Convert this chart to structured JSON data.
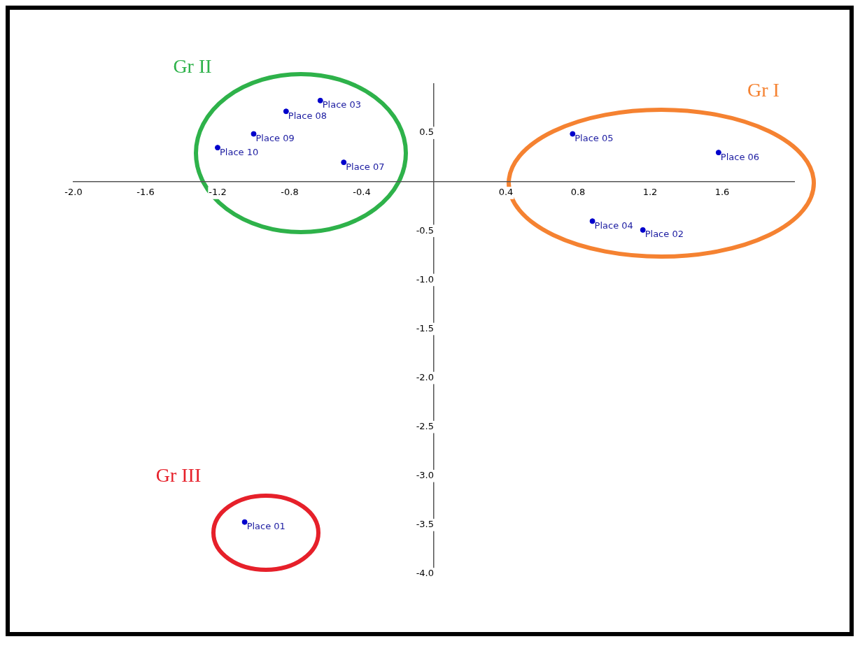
{
  "chart_data": {
    "type": "scatter",
    "series": [
      {
        "color": "#0000cc",
        "x": [
          -1.05,
          1.16,
          -0.63,
          0.88,
          0.77,
          1.58,
          -0.5,
          -0.82,
          -1.0,
          -1.2
        ],
        "values": [
          -3.47,
          -0.49,
          0.83,
          -0.4,
          0.49,
          0.3,
          0.2,
          0.72,
          0.49,
          0.35
        ]
      }
    ],
    "marker": "circle",
    "grid": false,
    "legend": false,
    "xlim": [
      -2.0,
      2.0
    ],
    "xticks": [
      {
        "value": -2,
        "label": "-2.0"
      },
      -1.6,
      -1.2,
      -0.8,
      -0.4,
      0.4,
      0.8,
      1.2,
      1.6
    ],
    "ylim": [
      -4.0,
      1.0
    ],
    "yticks": [
      0.5,
      -0.5,
      {
        "value": -1,
        "label": "-1.0"
      },
      -1.5,
      {
        "value": -2,
        "label": "-2.0"
      },
      -2.5,
      {
        "value": -3,
        "label": "-3.0"
      },
      -3.5,
      {
        "value": -4,
        "label": "-4.0"
      }
    ],
    "annotations": [
      {
        "text": "Place 01",
        "x": -1.05,
        "y": -3.47
      },
      {
        "text": "Place 02",
        "x": 1.16,
        "y": -0.49
      },
      {
        "text": "Place 03",
        "x": -0.63,
        "y": 0.83
      },
      {
        "text": "Place 04",
        "x": 0.88,
        "y": -0.4
      },
      {
        "text": "Place 05",
        "x": 0.77,
        "y": 0.49
      },
      {
        "text": "Place 06",
        "x": 1.58,
        "y": 0.3
      },
      {
        "text": "Place 07",
        "x": -0.5,
        "y": 0.2
      },
      {
        "text": "Place 08",
        "x": -0.82,
        "y": 0.72
      },
      {
        "text": "Place 09",
        "x": -1.0,
        "y": 0.49
      },
      {
        "text": "Place 10",
        "x": -1.2,
        "y": 0.35
      },
      "Gr I",
      "Gr II",
      "Gr III"
    ]
  }
}
